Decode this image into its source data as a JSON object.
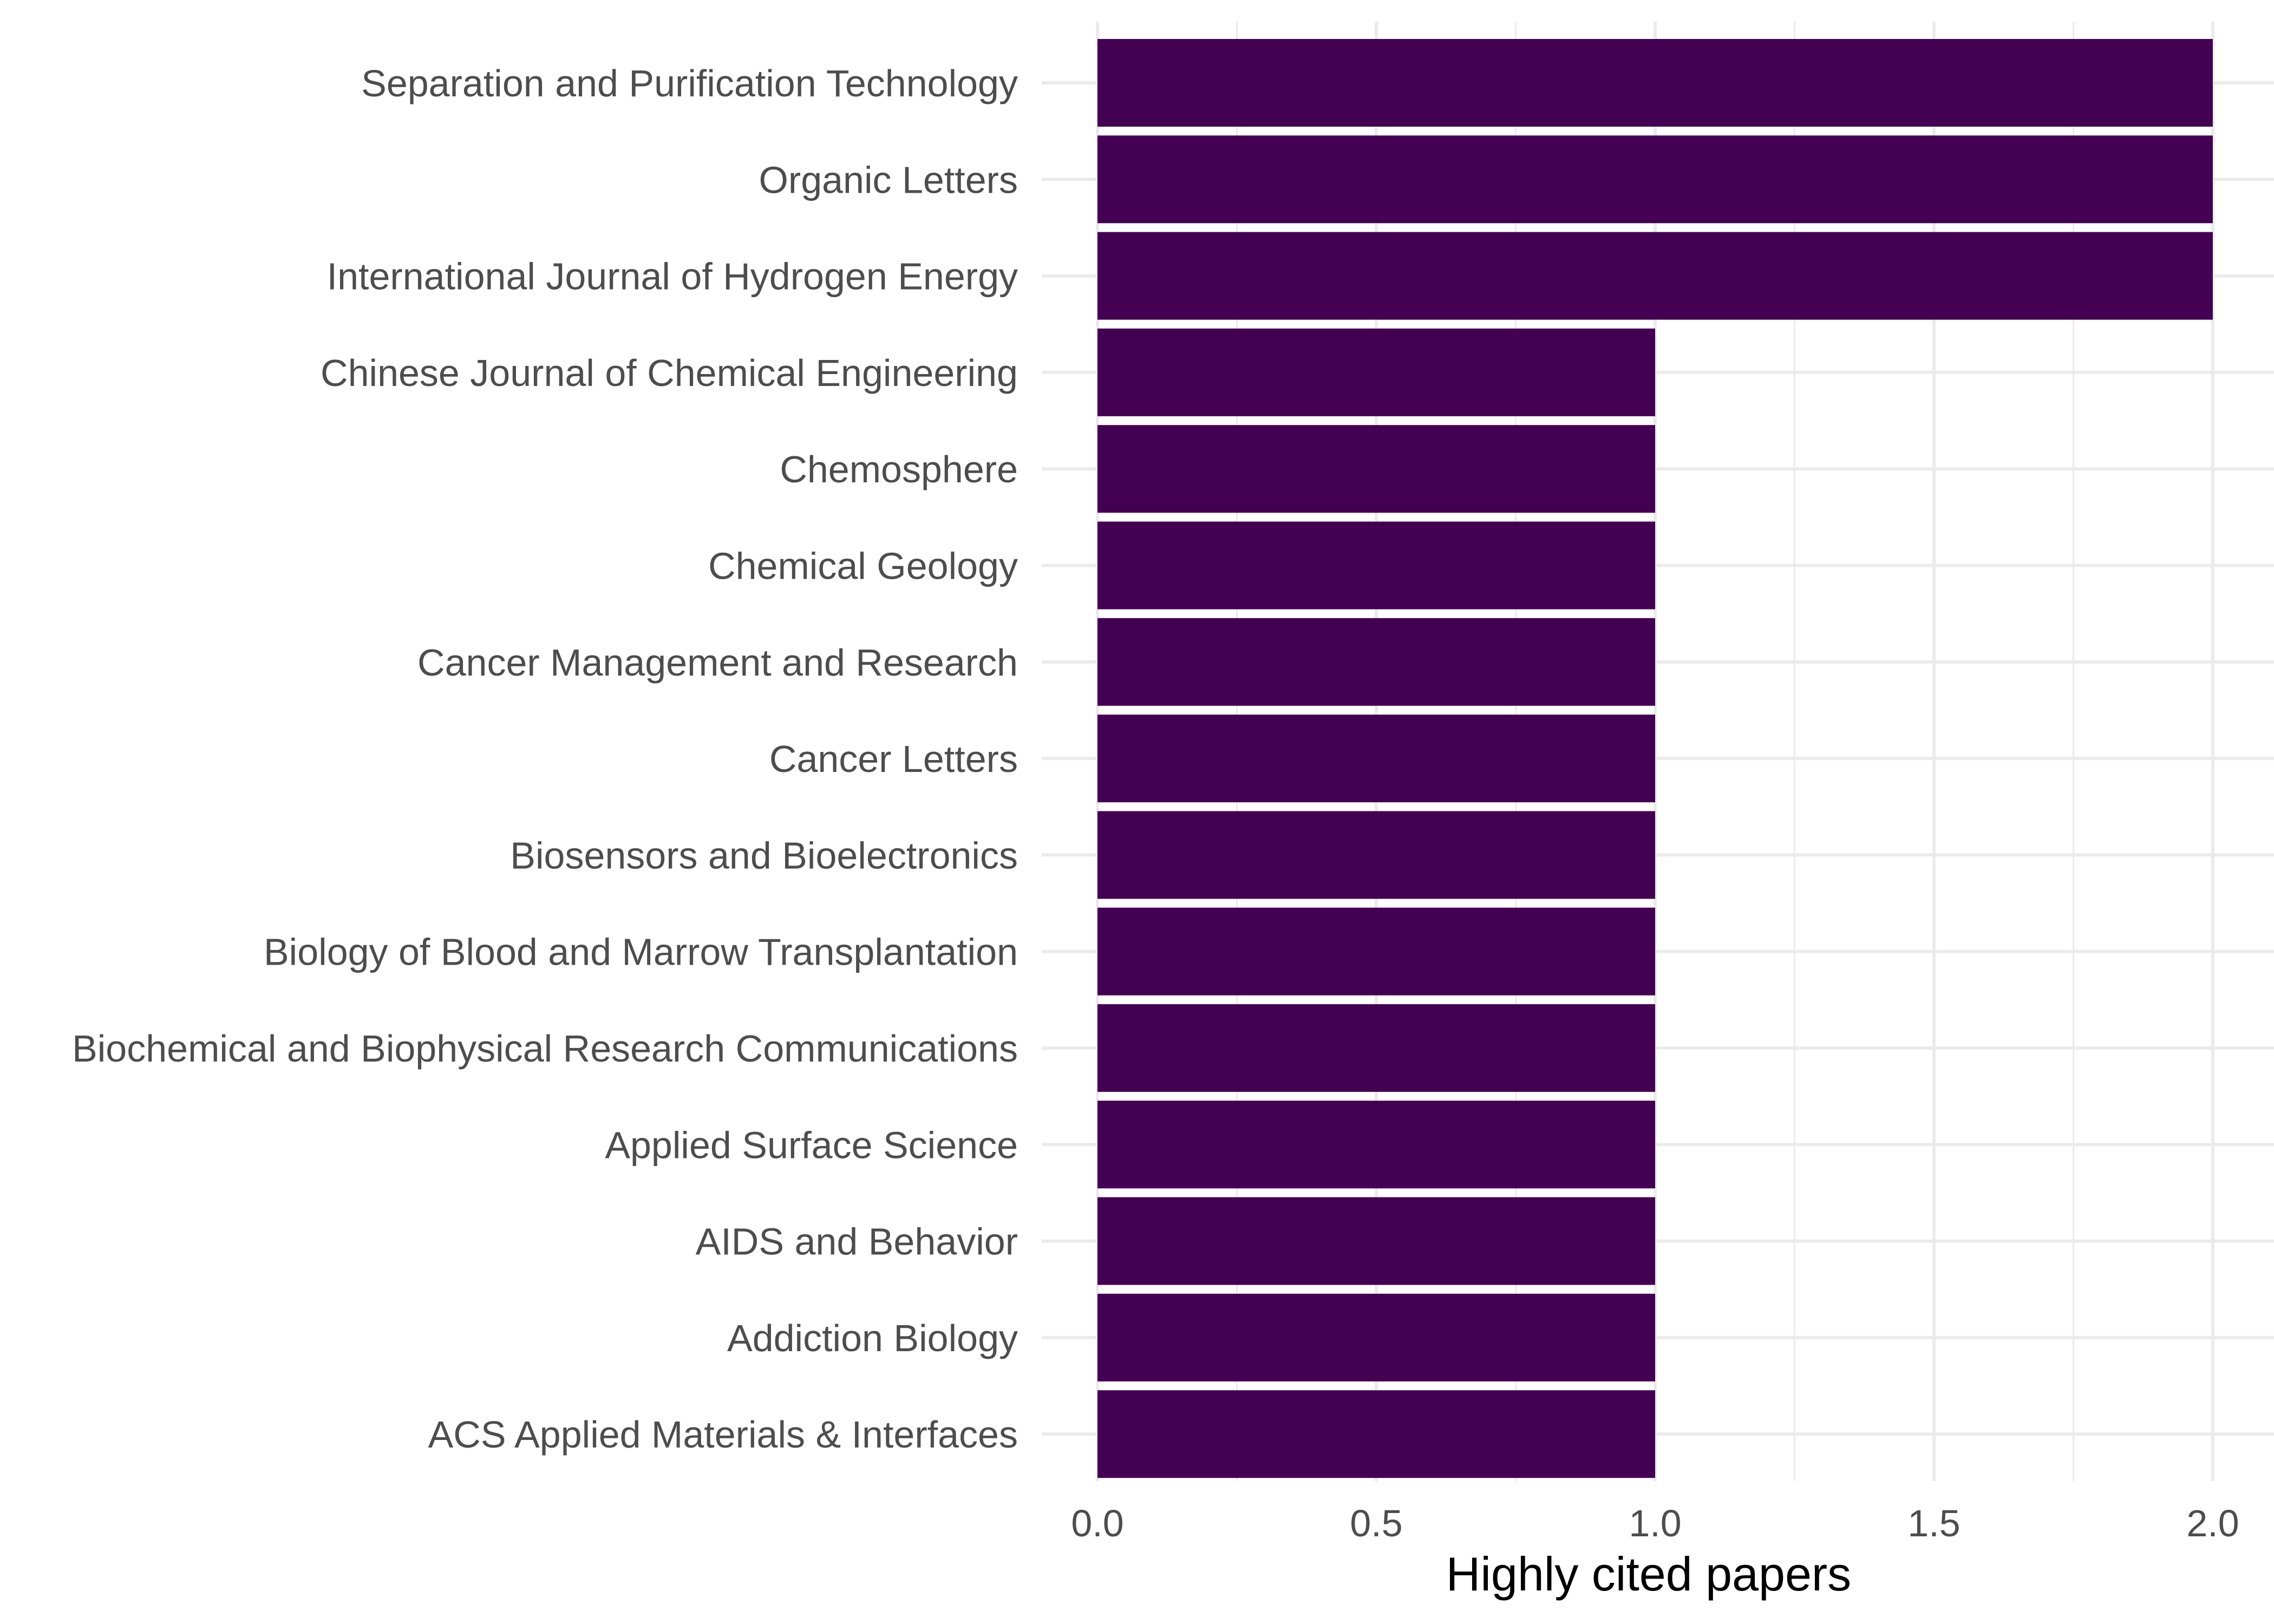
{
  "chart_data": {
    "type": "bar",
    "orientation": "horizontal",
    "title": "",
    "xlabel": "Highly cited papers",
    "ylabel": "",
    "categories": [
      "Separation and Purification Technology",
      "Organic Letters",
      "International Journal of Hydrogen Energy",
      "Chinese Journal of Chemical Engineering",
      "Chemosphere",
      "Chemical Geology",
      "Cancer Management and Research",
      "Cancer Letters",
      "Biosensors and Bioelectronics",
      "Biology of Blood and Marrow Transplantation",
      "Biochemical and Biophysical Research Communications",
      "Applied Surface Science",
      "AIDS and Behavior",
      "Addiction Biology",
      "ACS Applied Materials & Interfaces"
    ],
    "values": [
      2,
      2,
      2,
      1,
      1,
      1,
      1,
      1,
      1,
      1,
      1,
      1,
      1,
      1,
      1
    ],
    "xlim": [
      0,
      2
    ],
    "x_ticks": [
      0,
      0.5,
      1,
      1.5,
      2
    ],
    "x_tick_labels": [
      "0.0",
      "0.5",
      "1.0",
      "1.5",
      "2.0"
    ],
    "grid": true,
    "legend": "none",
    "bar_color": "#440154",
    "grid_color": "#ebebeb"
  }
}
